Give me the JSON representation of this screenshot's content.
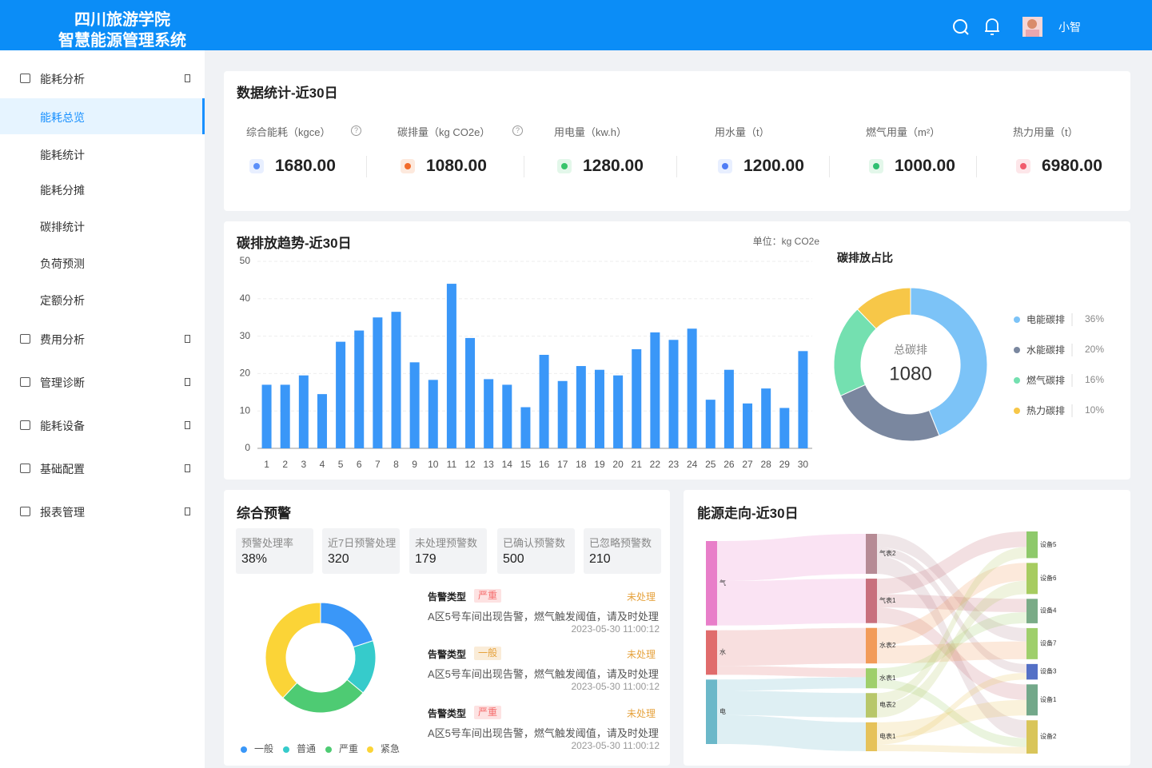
{
  "header": {
    "title": [
      "四川旅游学院",
      "智慧能源管理系统"
    ],
    "user": "小智"
  },
  "sidebar": {
    "menu": [
      {
        "label": "能耗分析",
        "children": [
          "能耗总览",
          "能耗统计",
          "能耗分摊",
          "碳排统计",
          "负荷预测",
          "定额分析"
        ]
      },
      {
        "label": "费用分析"
      },
      {
        "label": "管理诊断"
      },
      {
        "label": "能耗设备"
      },
      {
        "label": "基础配置"
      },
      {
        "label": "报表管理"
      }
    ]
  },
  "stats": {
    "title": "数据统计-近30日",
    "items": [
      {
        "label": "综合能耗（kgce）",
        "value": "1680.00"
      },
      {
        "label": "碳排量（kg CO2e）",
        "value": "1080.00"
      },
      {
        "label": "用电量（kw.h）",
        "value": "1280.00"
      },
      {
        "label": "用水量（t）",
        "value": "1200.00"
      },
      {
        "label": "燃气用量（m²）",
        "value": "1000.00"
      },
      {
        "label": "热力用量（t）",
        "value": "6980.00"
      }
    ]
  },
  "warning": {
    "title": "综合预警",
    "kpis": [
      {
        "label": "预警处理率",
        "value": "38%"
      },
      {
        "label": "近7日预警处理",
        "value": "320"
      },
      {
        "label": "未处理预警数",
        "value": "179"
      },
      {
        "label": "已确认预警数",
        "value": "500"
      },
      {
        "label": "已忽略预警数",
        "value": "210"
      }
    ],
    "alerts": [
      {
        "label": "告警类型",
        "level": "严重",
        "status": "未处理",
        "message": "A区5号车间出现告警，燃气触发阈值，请及时处理",
        "time": "2023-05-30 11:00:12"
      },
      {
        "label": "告警类型",
        "level": "一般",
        "status": "未处理",
        "message": "A区5号车间出现告警，燃气触发阈值，请及时处理",
        "time": "2023-05-30 11:00:12"
      },
      {
        "label": "告警类型",
        "level": "严重",
        "status": "未处理",
        "message": "A区5号车间出现告警，燃气触发阈值，请及时处理",
        "time": "2023-05-30 11:00:12"
      }
    ]
  },
  "chart_data": [
    {
      "type": "bar",
      "title": "碳排放趋势-近30日",
      "unit": "单位：kg CO2e",
      "categories": [
        "1",
        "2",
        "3",
        "4",
        "5",
        "6",
        "7",
        "8",
        "9",
        "10",
        "11",
        "12",
        "13",
        "14",
        "15",
        "16",
        "17",
        "18",
        "19",
        "20",
        "21",
        "22",
        "23",
        "24",
        "25",
        "26",
        "27",
        "28",
        "29",
        "30"
      ],
      "values": [
        17,
        17,
        19.5,
        14.5,
        28.5,
        31.5,
        35,
        36.5,
        23,
        18.3,
        44,
        29.5,
        18.5,
        17,
        11,
        25,
        18,
        22,
        21,
        19.5,
        26.5,
        31,
        29,
        32,
        13,
        21,
        12,
        16,
        10.8,
        26
      ],
      "color": "#3a97f8",
      "ylim": [
        0,
        50
      ],
      "yticks": [
        0,
        10,
        20,
        30,
        40,
        50
      ],
      "grid": true
    },
    {
      "type": "donut",
      "title": "碳排放占比",
      "center_label": "总碳排",
      "center_value": 1080,
      "categories": [
        "电能碳排",
        "水能碳排",
        "燃气碳排",
        "热力碳排"
      ],
      "values": [
        36,
        20,
        16,
        10
      ],
      "value_labels": [
        "36%",
        "20%",
        "16%",
        "10%"
      ],
      "colors": [
        "#7cc3f7",
        "#7a879f",
        "#74e0b0",
        "#f7c748"
      ]
    },
    {
      "type": "donut",
      "categories": [
        "一般",
        "普通",
        "严重",
        "紧急"
      ],
      "values": [
        20,
        16,
        26,
        38
      ],
      "colors": [
        "#3a97f8",
        "#36cbcb",
        "#4ecb73",
        "#fbd437"
      ]
    },
    {
      "type": "sankey",
      "title": "能源走向-近30日",
      "nodes": [
        {
          "name": "气",
          "color": "#e87ec9"
        },
        {
          "name": "水",
          "color": "#e06c6c"
        },
        {
          "name": "电",
          "color": "#6bb8c9"
        },
        {
          "name": "气表2",
          "color": "#b68b95"
        },
        {
          "name": "气表1",
          "color": "#c8707d"
        },
        {
          "name": "水表2",
          "color": "#f29b59"
        },
        {
          "name": "水表1",
          "color": "#9fcf6b"
        },
        {
          "name": "电表2",
          "color": "#b8c76a"
        },
        {
          "name": "电表1",
          "color": "#e6c25a"
        },
        {
          "name": "设备5",
          "color": "#8ec96b"
        },
        {
          "name": "设备6",
          "color": "#a7cc60"
        },
        {
          "name": "设备4",
          "color": "#7aab87"
        },
        {
          "name": "设备7",
          "color": "#9fcf6b"
        },
        {
          "name": "设备3",
          "color": "#5470c6"
        },
        {
          "name": "设备1",
          "color": "#73a88a"
        },
        {
          "name": "设备2",
          "color": "#d9c55a"
        }
      ],
      "links": [
        {
          "source": "气",
          "target": "气表2",
          "value": 18
        },
        {
          "source": "气",
          "target": "气表1",
          "value": 20
        },
        {
          "source": "水",
          "target": "水表2",
          "value": 16
        },
        {
          "source": "水",
          "target": "水表1",
          "value": 4
        },
        {
          "source": "电",
          "target": "水表1",
          "value": 5
        },
        {
          "source": "电",
          "target": "电表2",
          "value": 11
        },
        {
          "source": "电",
          "target": "电表1",
          "value": 13
        },
        {
          "source": "气表2",
          "target": "设备7",
          "value": 6
        },
        {
          "source": "气表2",
          "target": "设备3",
          "value": 4
        },
        {
          "source": "气表2",
          "target": "设备2",
          "value": 8
        },
        {
          "source": "气表1",
          "target": "设备5",
          "value": 7
        },
        {
          "source": "气表1",
          "target": "设备4",
          "value": 6
        },
        {
          "source": "气表1",
          "target": "设备1",
          "value": 7
        },
        {
          "source": "水表2",
          "target": "设备6",
          "value": 8
        },
        {
          "source": "水表2",
          "target": "设备7",
          "value": 8
        },
        {
          "source": "水表1",
          "target": "设备4",
          "value": 5
        },
        {
          "source": "水表1",
          "target": "设备2",
          "value": 4
        },
        {
          "source": "电表2",
          "target": "设备5",
          "value": 5
        },
        {
          "source": "电表2",
          "target": "设备6",
          "value": 6
        },
        {
          "source": "电表1",
          "target": "设备1",
          "value": 7
        },
        {
          "source": "电表1",
          "target": "设备3",
          "value": 3
        },
        {
          "source": "电表1",
          "target": "设备2",
          "value": 3
        }
      ]
    }
  ]
}
